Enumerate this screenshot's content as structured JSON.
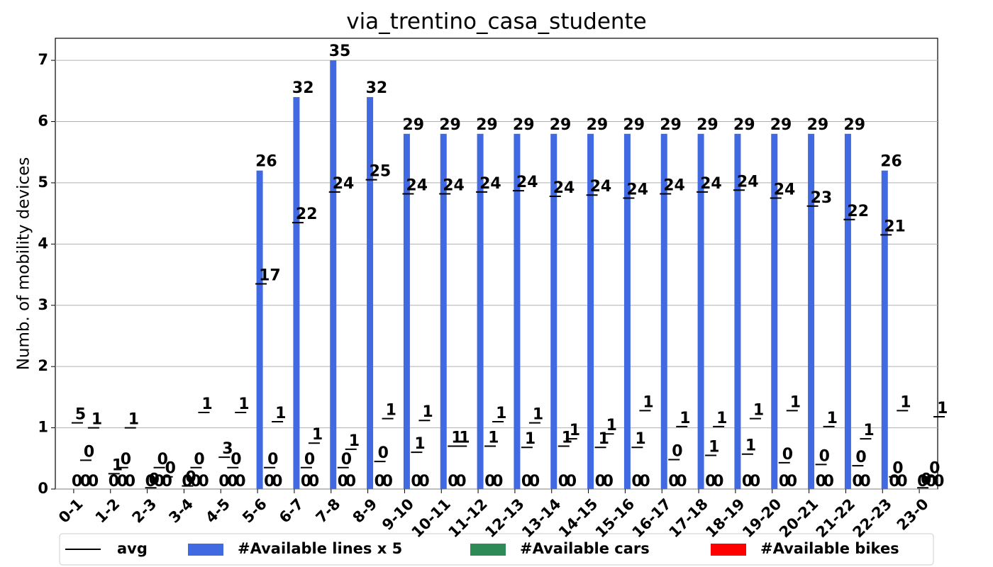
{
  "chart_data": {
    "type": "bar",
    "title": "via_trentino_casa_studente",
    "y_label": "Numb. of mobility devices",
    "categories": [
      "0-1",
      "1-2",
      "2-3",
      "3-4",
      "4-5",
      "5-6",
      "6-7",
      "7-8",
      "8-9",
      "9-10",
      "10-11",
      "11-12",
      "12-13",
      "13-14",
      "14-15",
      "15-16",
      "16-17",
      "17-18",
      "18-19",
      "19-20",
      "20-21",
      "21-22",
      "22-23",
      "23-0"
    ],
    "ylim": [
      0,
      7.36
    ],
    "yticks": [
      0,
      1,
      2,
      3,
      4,
      5,
      6,
      7
    ],
    "grid": true,
    "avg_legend": "avg",
    "avg_color": "#000000",
    "series": [
      {
        "name": "#Available lines x 5",
        "color": "#4169e1",
        "values": [
          0,
          0,
          0,
          0,
          0,
          5.2,
          6.4,
          7,
          6.4,
          5.8,
          5.8,
          5.8,
          5.8,
          5.8,
          5.8,
          5.8,
          5.8,
          5.8,
          5.8,
          5.8,
          5.8,
          5.8,
          5.2,
          0
        ],
        "value_labels": [
          "0",
          "0",
          "0",
          "0",
          "0",
          "26",
          "32",
          "35",
          "32",
          "29",
          "29",
          "29",
          "29",
          "29",
          "29",
          "29",
          "29",
          "29",
          "29",
          "29",
          "29",
          "29",
          "26",
          "0"
        ],
        "avg_values": [
          1.08,
          0.25,
          0.02,
          0.05,
          0.52,
          3.35,
          4.35,
          4.85,
          5.05,
          4.82,
          4.82,
          4.85,
          4.87,
          4.78,
          4.8,
          4.75,
          4.82,
          4.85,
          4.88,
          4.75,
          4.62,
          4.4,
          4.15,
          0.02
        ],
        "avg_labels": [
          "5",
          "1",
          "0",
          "0",
          "3",
          "17",
          "22",
          "24",
          "25",
          "24",
          "24",
          "24",
          "24",
          "24",
          "24",
          "24",
          "24",
          "24",
          "24",
          "24",
          "23",
          "22",
          "21",
          "0"
        ]
      },
      {
        "name": "#Available cars",
        "color": "#2e8b57",
        "values": [
          0,
          0,
          0,
          0,
          0,
          0,
          0,
          0,
          0,
          0,
          0,
          0,
          0,
          0,
          0,
          0,
          0,
          0,
          0,
          0,
          0,
          0,
          0,
          0
        ],
        "avg_values": [
          0.47,
          0.35,
          0.35,
          0.35,
          0.35,
          0.35,
          0.35,
          0.35,
          0.45,
          0.6,
          0.7,
          0.7,
          0.68,
          0.7,
          0.68,
          0.68,
          0.48,
          0.55,
          0.57,
          0.43,
          0.4,
          0.38,
          0.2,
          0.2
        ],
        "avg_labels": [
          "0",
          "0",
          "0",
          "0",
          "0",
          "0",
          "0",
          "0",
          "0",
          "1",
          "1",
          "1",
          "1",
          "1",
          "1",
          "1",
          "0",
          "1",
          "1",
          "0",
          "0",
          "0",
          "0",
          "0"
        ]
      },
      {
        "name": "#Available bikes",
        "color": "#ff0000",
        "values": [
          0,
          0,
          0,
          0,
          0,
          0,
          0,
          0,
          0,
          0,
          0,
          0,
          0,
          0,
          0,
          0,
          0,
          0,
          0,
          0,
          0,
          0,
          0,
          0
        ],
        "avg_values": [
          1.0,
          1.0,
          0.2,
          1.25,
          1.25,
          1.1,
          0.75,
          0.65,
          1.15,
          1.12,
          0.7,
          1.1,
          1.08,
          0.82,
          0.9,
          1.28,
          1.02,
          1.02,
          1.15,
          1.28,
          1.02,
          0.82,
          1.28,
          1.18
        ],
        "avg_labels": [
          "1",
          "1",
          "0",
          "1",
          "1",
          "1",
          "1",
          "1",
          "1",
          "1",
          "1",
          "1",
          "1",
          "1",
          "1",
          "1",
          "1",
          "1",
          "1",
          "1",
          "1",
          "1",
          "1",
          "1"
        ]
      }
    ]
  }
}
